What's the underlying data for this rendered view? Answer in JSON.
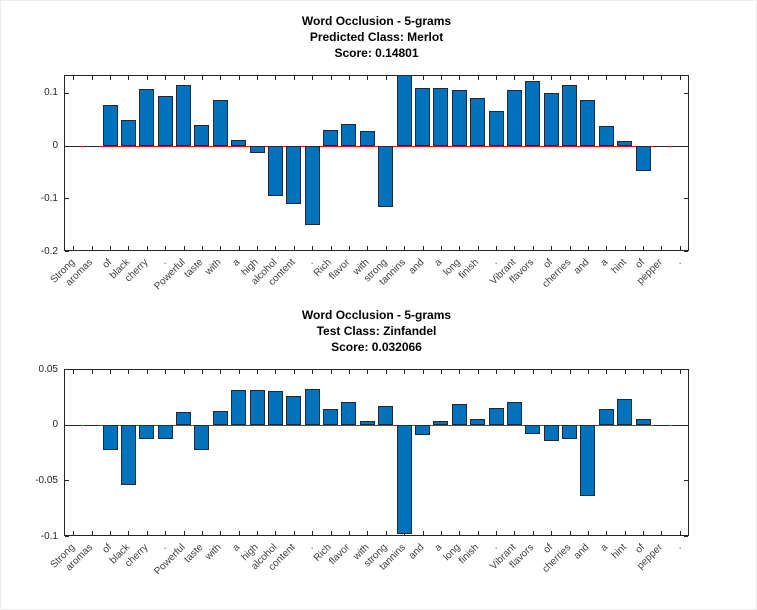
{
  "colors": {
    "bar_fill": "#0072BD",
    "bar_edge": "#1f2a33",
    "zero_line": "#ff0000",
    "axis": "#262626",
    "title_text": "#000000",
    "tick_label": "#262626",
    "word_label": "#3d3d3d",
    "background": "#ffffff"
  },
  "chart_data": [
    {
      "type": "bar",
      "title_lines": [
        "Word Occlusion - 5-grams",
        "Predicted Class: Merlot",
        "Score: 0.14801"
      ],
      "score": "0.14801",
      "categories": [
        "Strong",
        "aromas",
        "of",
        "black",
        "cherry",
        ".",
        "Powerful",
        "taste",
        "with",
        "a",
        "high",
        "alcohol",
        "content",
        ".",
        "Rich",
        "flavor",
        "with",
        "strong",
        "tannins",
        "and",
        "a",
        "long",
        "finish",
        ".",
        "Vibrant",
        "flavors",
        "of",
        "cherries",
        "and",
        "a",
        "hint",
        "of",
        "pepper",
        "."
      ],
      "values": [
        0,
        0,
        0.078,
        0.048,
        0.108,
        0.095,
        0.116,
        0.04,
        0.087,
        0.01,
        -0.014,
        -0.096,
        -0.11,
        -0.15,
        0.029,
        0.041,
        0.027,
        -0.116,
        0.134,
        0.11,
        0.11,
        0.106,
        0.091,
        0.066,
        0.106,
        0.122,
        0.1,
        0.116,
        0.086,
        0.038,
        0.008,
        -0.049,
        0,
        0
      ],
      "ylim": [
        -0.2,
        0.134
      ],
      "yticks": [
        0.1,
        0,
        -0.1,
        -0.2
      ],
      "ytick_labels": [
        "0.1",
        "0",
        "-0.1",
        "-0.2"
      ],
      "zero_line": true,
      "grid": false,
      "legend": null
    },
    {
      "type": "bar",
      "title_lines": [
        "Word Occlusion - 5-grams",
        "Test Class: Zinfandel",
        "Score: 0.032066"
      ],
      "score": "0.032066",
      "categories": [
        "Strong",
        "aromas",
        "of",
        "black",
        "cherry",
        ".",
        "Powerful",
        "taste",
        "with",
        "a",
        "high",
        "alcohol",
        "content",
        ".",
        "Rich",
        "flavor",
        "with",
        "strong",
        "tannins",
        "and",
        "a",
        "long",
        "finish",
        ".",
        "Vibrant",
        "flavors",
        "of",
        "cherries",
        "and",
        "a",
        "hint",
        "of",
        "pepper",
        "."
      ],
      "values": [
        0,
        0,
        -0.023,
        -0.054,
        -0.013,
        -0.013,
        0.011,
        -0.023,
        0.012,
        0.031,
        0.031,
        0.03,
        0.026,
        0.032,
        0.014,
        0.02,
        0.003,
        0.017,
        -0.098,
        -0.009,
        0.003,
        0.019,
        0.005,
        0.015,
        0.02,
        -0.008,
        -0.015,
        -0.013,
        -0.064,
        0.014,
        0.023,
        0.005,
        0,
        0
      ],
      "ylim": [
        -0.1,
        0.05
      ],
      "yticks": [
        0.05,
        0,
        -0.05,
        -0.1
      ],
      "ytick_labels": [
        "0.05",
        "0",
        "-0.05",
        "-0.1"
      ],
      "zero_line": true,
      "grid": false,
      "legend": null
    }
  ]
}
